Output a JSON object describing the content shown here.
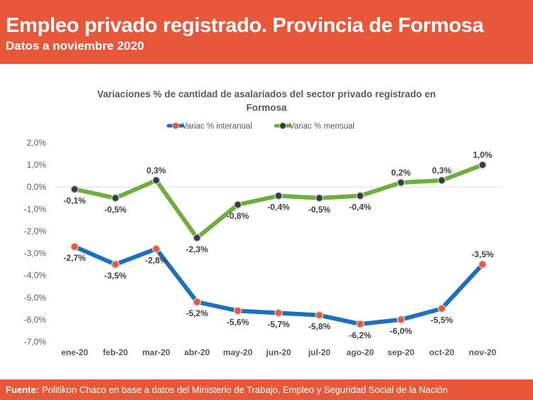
{
  "header": {
    "title": "Empleo privado registrado. Provincia de Formosa",
    "subtitle": "Datos a noviembre 2020"
  },
  "footer": {
    "label": "Fuente:",
    "text": "Politikon Chaco en base a datos del Ministerio de Trabajo, Empleo y Seguridad Social de la Nación"
  },
  "chart_data": {
    "type": "line",
    "title_line1": "Variaciones % de cantidad de asalariados del sector privado registrado en",
    "title_line2": "Formosa",
    "categories": [
      "ene-20",
      "feb-20",
      "mar-20",
      "abr-20",
      "may-20",
      "jun-20",
      "jul-20",
      "ago-20",
      "sep-20",
      "oct-20",
      "nov-20"
    ],
    "ylim": [
      -7,
      2
    ],
    "yticks": [
      "2,0%",
      "1,0%",
      "0,0%",
      "-1,0%",
      "-2,0%",
      "-3,0%",
      "-4,0%",
      "-5,0%",
      "-6,0%",
      "-7,0%"
    ],
    "legend_position": "top",
    "series": [
      {
        "name": "Variac % interanual",
        "color": "#1F6FBF",
        "marker": "#E9573B",
        "values": [
          -2.7,
          -3.5,
          -2.8,
          -5.2,
          -5.6,
          -5.7,
          -5.8,
          -6.2,
          -6.0,
          -5.5,
          -3.5
        ],
        "labels": [
          "-2,7%",
          "-3,5%",
          "-2,8%",
          "-5,2%",
          "-5,6%",
          "-5,7%",
          "-5,8%",
          "-6,2%",
          "-6,0%",
          "-5,5%",
          "-3,5%"
        ]
      },
      {
        "name": "Variac % mensual",
        "color": "#6FAE3E",
        "marker": "#3a3a3a",
        "values": [
          -0.1,
          -0.5,
          0.3,
          -2.3,
          -0.8,
          -0.4,
          -0.5,
          -0.4,
          0.2,
          0.3,
          1.0
        ],
        "labels": [
          "-0,1%",
          "-0,5%",
          "0,3%",
          "-2,3%",
          "-0,8%",
          "-0,4%",
          "-0,5%",
          "-0,4%",
          "0,2%",
          "0,3%",
          "1,0%"
        ]
      }
    ]
  }
}
